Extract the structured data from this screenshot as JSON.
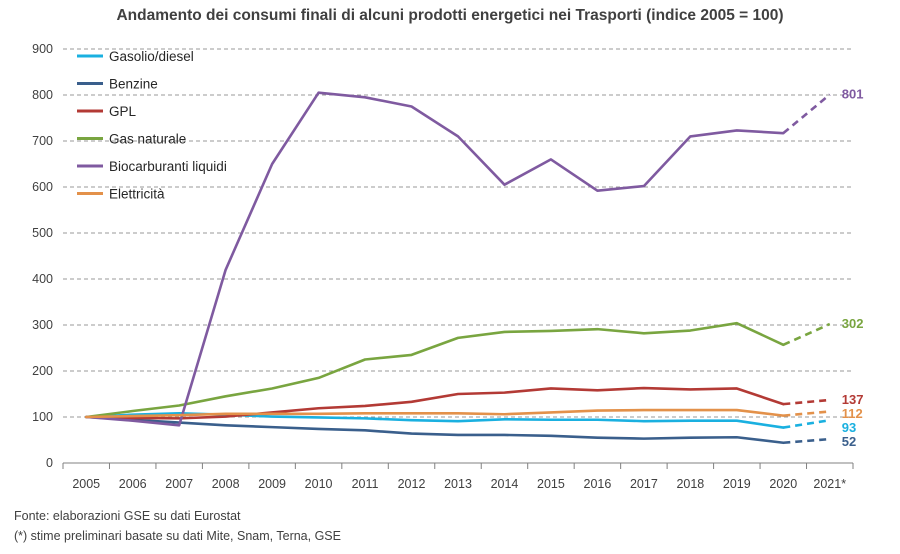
{
  "chart_data": {
    "type": "line",
    "title": "Andamento dei consumi finali di alcuni prodotti energetici nei Trasporti (indice 2005 = 100)",
    "xlabel": "",
    "ylabel": "",
    "categories": [
      "2005",
      "2006",
      "2007",
      "2008",
      "2009",
      "2010",
      "2011",
      "2012",
      "2013",
      "2014",
      "2015",
      "2016",
      "2017",
      "2018",
      "2019",
      "2020",
      "2021*"
    ],
    "ylim": [
      0,
      900
    ],
    "yticks": [
      0,
      100,
      200,
      300,
      400,
      500,
      600,
      700,
      800,
      900
    ],
    "grid": "horizontal dashed",
    "legend_position": "top-left",
    "estimated_last_point_style": "dashed",
    "series": [
      {
        "name": "Gasolio/diesel",
        "color": "#1ab0e0",
        "values": [
          100,
          105,
          108,
          105,
          101,
          99,
          97,
          93,
          91,
          95,
          94,
          94,
          91,
          92,
          92,
          77,
          93
        ],
        "end_label": "93"
      },
      {
        "name": "Benzine",
        "color": "#3a5f8c",
        "values": [
          100,
          94,
          88,
          82,
          78,
          74,
          71,
          64,
          61,
          61,
          59,
          55,
          53,
          55,
          56,
          44,
          52
        ],
        "end_label": "52"
      },
      {
        "name": "GPL",
        "color": "#b33a35",
        "values": [
          100,
          98,
          97,
          101,
          110,
          119,
          124,
          133,
          150,
          153,
          162,
          158,
          163,
          160,
          162,
          128,
          137
        ],
        "end_label": "137"
      },
      {
        "name": "Gas naturale",
        "color": "#79a540",
        "values": [
          100,
          113,
          125,
          145,
          162,
          185,
          225,
          235,
          272,
          285,
          287,
          291,
          282,
          288,
          304,
          257,
          302
        ],
        "end_label": "302"
      },
      {
        "name": "Biocarburanti liquidi",
        "color": "#7f5aa0",
        "values": [
          100,
          92,
          82,
          420,
          650,
          805,
          795,
          775,
          710,
          605,
          660,
          592,
          602,
          710,
          723,
          717,
          801
        ],
        "end_label": "801"
      },
      {
        "name": "Elettricità",
        "color": "#e3914a",
        "values": [
          100,
          102,
          104,
          107,
          107,
          107,
          108,
          108,
          108,
          106,
          110,
          114,
          115,
          115,
          115,
          103,
          112
        ],
        "end_label": "112"
      }
    ]
  },
  "notes": {
    "source": "Fonte: elaborazioni GSE su dati Eurostat",
    "estimate": "(*) stime preliminari basate su dati Mite, Snam, Terna, GSE"
  }
}
